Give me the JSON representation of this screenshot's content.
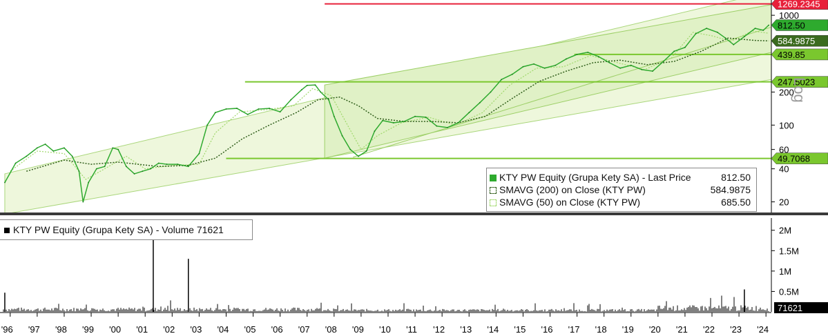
{
  "chart_data": [
    {
      "type": "line",
      "title": "KTY PW Equity (Grupa Kety SA)",
      "y_scale": "log",
      "ylim": [
        16,
        1300
      ],
      "y_ticks": [
        20,
        40,
        60,
        100,
        200,
        1000
      ],
      "x_ticks": [
        "'96",
        "'97",
        "'98",
        "'99",
        "'00",
        "'01",
        "'02",
        "'03",
        "'04",
        "'05",
        "'06",
        "'07",
        "'08",
        "'09",
        "'10",
        "'11",
        "'12",
        "'13",
        "'14",
        "'15",
        "'16",
        "'17",
        "'18",
        "'19",
        "'20",
        "'21",
        "'22",
        "'23",
        "'24"
      ],
      "xlim": [
        1995.75,
        2024.2
      ],
      "series": [
        {
          "name": "KTY PW Equity (Grupa Kety SA) - Last Price",
          "label_value": "812.50",
          "color": "#2eaa2e",
          "x": [
            1995.8,
            1996.2,
            1996.6,
            1997.0,
            1997.3,
            1997.6,
            1998.0,
            1998.3,
            1998.55,
            1998.7,
            1998.9,
            1999.2,
            1999.5,
            1999.8,
            2000.0,
            2000.3,
            2000.6,
            2000.9,
            2001.2,
            2001.5,
            2001.8,
            2002.2,
            2002.6,
            2003.0,
            2003.3,
            2003.6,
            2004.0,
            2004.4,
            2004.8,
            2005.2,
            2005.6,
            2006.0,
            2006.4,
            2006.8,
            2007.0,
            2007.3,
            2007.5,
            2007.8,
            2008.0,
            2008.3,
            2008.6,
            2008.9,
            2009.2,
            2009.5,
            2009.8,
            2010.2,
            2010.6,
            2011.0,
            2011.4,
            2011.8,
            2012.2,
            2012.6,
            2013.0,
            2013.4,
            2013.8,
            2014.2,
            2014.6,
            2015.0,
            2015.4,
            2015.8,
            2016.2,
            2016.6,
            2017.0,
            2017.4,
            2017.8,
            2018.2,
            2018.6,
            2019.0,
            2019.4,
            2019.8,
            2020.2,
            2020.6,
            2021.0,
            2021.4,
            2021.8,
            2022.2,
            2022.5,
            2022.8,
            2023.2,
            2023.6,
            2023.9,
            2024.1
          ],
          "y": [
            30,
            45,
            52,
            62,
            67,
            58,
            62,
            52,
            38,
            20,
            30,
            40,
            42,
            62,
            60,
            42,
            36,
            38,
            40,
            45,
            44,
            44,
            42,
            55,
            100,
            130,
            140,
            142,
            125,
            140,
            142,
            132,
            170,
            210,
            230,
            232,
            200,
            170,
            120,
            80,
            60,
            52,
            58,
            88,
            110,
            105,
            108,
            120,
            118,
            98,
            95,
            105,
            130,
            160,
            200,
            260,
            290,
            340,
            360,
            330,
            350,
            400,
            440,
            460,
            420,
            370,
            330,
            350,
            320,
            310,
            380,
            470,
            510,
            680,
            760,
            700,
            620,
            540,
            640,
            760,
            730,
            812.5
          ]
        },
        {
          "name": "SMAVG (200)  on Close (KTY PW)",
          "label_value": "584.9875",
          "color": "#2f5d1a",
          "x": [
            1996.6,
            1998.0,
            1999.0,
            2000.0,
            2001.5,
            2002.6,
            2003.6,
            2004.6,
            2005.6,
            2006.6,
            2007.4,
            2008.2,
            2008.9,
            2009.6,
            2010.6,
            2011.6,
            2012.6,
            2013.6,
            2014.6,
            2015.6,
            2016.6,
            2017.6,
            2018.6,
            2019.6,
            2020.6,
            2021.6,
            2022.6,
            2023.6,
            2024.1
          ],
          "y": [
            38,
            48,
            44,
            46,
            42,
            43,
            50,
            75,
            100,
            130,
            170,
            180,
            150,
            115,
            108,
            108,
            105,
            120,
            175,
            250,
            310,
            370,
            390,
            355,
            380,
            470,
            620,
            590,
            585
          ]
        },
        {
          "name": "SMAVG (50)  on Close (KTY PW)",
          "label_value": "685.50",
          "color": "#9fd86a",
          "x": [
            1996.0,
            1997.0,
            1998.0,
            1998.8,
            1999.5,
            2000.3,
            2001.0,
            2002.0,
            2003.0,
            2003.6,
            2004.5,
            2005.5,
            2006.5,
            2007.2,
            2007.9,
            2008.6,
            2009.0,
            2009.6,
            2010.5,
            2011.5,
            2012.5,
            2013.5,
            2014.5,
            2015.5,
            2016.5,
            2017.5,
            2018.5,
            2019.5,
            2020.5,
            2021.3,
            2022.0,
            2022.7,
            2023.5,
            2024.1
          ],
          "y": [
            38,
            58,
            55,
            32,
            40,
            52,
            40,
            43,
            44,
            85,
            132,
            138,
            150,
            215,
            185,
            90,
            60,
            80,
            105,
            118,
            100,
            130,
            230,
            330,
            340,
            430,
            370,
            320,
            410,
            700,
            650,
            580,
            720,
            685.5
          ]
        }
      ]
    },
    {
      "type": "bar",
      "title": "KTY PW Equity (Grupa Kety SA) - Volume",
      "last_value": "71621",
      "ylim": [
        0,
        2300000
      ],
      "y_ticks": [
        "0.5M",
        "1M",
        "1.5M",
        "2M"
      ],
      "spikes": [
        {
          "x": 2001.3,
          "value": 1800000
        },
        {
          "x": 2002.6,
          "value": 1300000
        },
        {
          "x": 2023.2,
          "value": 550000
        },
        {
          "x": 1995.8,
          "value": 470000
        }
      ]
    }
  ],
  "levels": [
    {
      "value": 1269.2345,
      "label": "1269.2345",
      "color": "#e8203a",
      "x_start": 2007.65
    },
    {
      "value": 247.5023,
      "label": "247.5023",
      "color": "#7ac72e",
      "x_start": 2004.7
    },
    {
      "value": 439.85,
      "label": "439.85",
      "color": "#7ac72e",
      "x_start": 2016.9
    },
    {
      "value": 49.7068,
      "label": "49.7068",
      "color": "#7ac72e",
      "x_start": 2004.0
    }
  ],
  "tags": [
    {
      "value": "1269.2345",
      "bg": "#e8203a",
      "fg": "#ffffff"
    },
    {
      "value": "812.50",
      "bg": "#2eaa2e",
      "fg": "#000000"
    },
    {
      "value": "584.9875",
      "bg": "#3b6b1f",
      "fg": "#ffffff"
    },
    {
      "value": "439.85",
      "bg": "#7ac72e",
      "fg": "#000000"
    },
    {
      "value": "247.5023",
      "bg": "#7ac72e",
      "fg": "#000000"
    },
    {
      "value": "49.7068",
      "bg": "#7ac72e",
      "fg": "#000000"
    }
  ],
  "legend": {
    "rows": [
      {
        "label": "KTY PW Equity (Grupa Kety SA) - Last Price",
        "value": "812.50"
      },
      {
        "label": "SMAVG (200)  on Close (KTY PW)",
        "value": "584.9875"
      },
      {
        "label": "SMAVG (50)  on Close (KTY PW)",
        "value": "685.50"
      }
    ]
  },
  "volume_legend": "KTY PW Equity (Grupa Kety SA) - Volume 71621",
  "volume_tag": "71621",
  "log_label": "Log"
}
